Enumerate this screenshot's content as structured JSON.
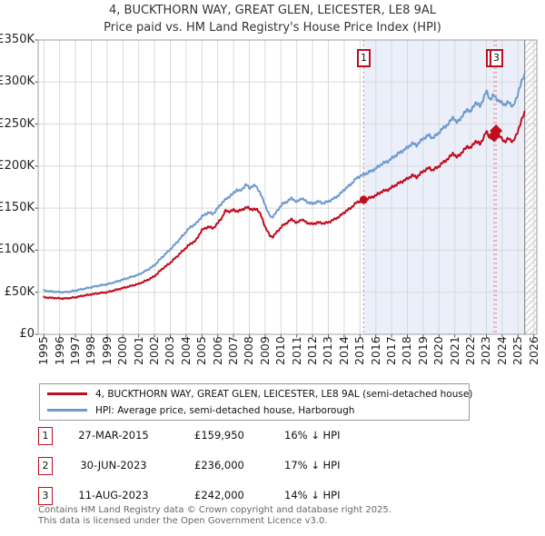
{
  "title": {
    "line1": "4, BUCKTHORN WAY, GREAT GLEN, LEICESTER, LE8 9AL",
    "line2": "Price paid vs. HM Land Registry's House Price Index (HPI)"
  },
  "chart_data": {
    "type": "line",
    "xlim": [
      1994.64,
      2026.19
    ],
    "x_axis": {
      "years": [
        1995,
        1996,
        1997,
        1998,
        1999,
        2000,
        2001,
        2002,
        2003,
        2004,
        2005,
        2006,
        2007,
        2008,
        2009,
        2010,
        2011,
        2012,
        2013,
        2014,
        2015,
        2016,
        2017,
        2018,
        2019,
        2020,
        2021,
        2022,
        2023,
        2024,
        2025,
        2026
      ]
    },
    "y_axis": {
      "ylim": [
        0,
        350
      ],
      "tick_values": [
        0,
        50,
        100,
        150,
        200,
        250,
        300,
        350
      ],
      "tick_labels": [
        "£0",
        "£50K",
        "£100K",
        "£150K",
        "£200K",
        "£250K",
        "£300K",
        "£350K"
      ],
      "unit": "GBP thousands"
    },
    "grid": true,
    "shaded_region": {
      "from": 2015.23,
      "to": 2025.42
    },
    "hatched_region": {
      "from": 2025.42,
      "to": 2026.19
    },
    "series": [
      {
        "name": "hpi-harborough-semi-detached",
        "color": "#6f9acd",
        "anchors": [
          [
            1995.0,
            52
          ],
          [
            1995.4,
            51
          ],
          [
            1995.8,
            50.5
          ],
          [
            1996.2,
            50
          ],
          [
            1996.6,
            50.5
          ],
          [
            1997.0,
            52
          ],
          [
            1997.5,
            54
          ],
          [
            1998.0,
            56
          ],
          [
            1998.5,
            58
          ],
          [
            1999.0,
            59.5
          ],
          [
            1999.5,
            62
          ],
          [
            2000.0,
            65
          ],
          [
            2000.5,
            68
          ],
          [
            2001.0,
            71
          ],
          [
            2001.5,
            76
          ],
          [
            2002.0,
            82
          ],
          [
            2002.5,
            92
          ],
          [
            2003.0,
            101
          ],
          [
            2003.5,
            111
          ],
          [
            2004.0,
            122
          ],
          [
            2004.3,
            128
          ],
          [
            2004.6,
            131
          ],
          [
            2005.0,
            140
          ],
          [
            2005.4,
            145
          ],
          [
            2005.7,
            143
          ],
          [
            2006.0,
            150
          ],
          [
            2006.3,
            157
          ],
          [
            2006.6,
            162
          ],
          [
            2006.9,
            166
          ],
          [
            2007.2,
            172
          ],
          [
            2007.4,
            170
          ],
          [
            2007.6,
            174
          ],
          [
            2007.8,
            178
          ],
          [
            2008.0,
            174
          ],
          [
            2008.2,
            176
          ],
          [
            2008.4,
            177
          ],
          [
            2008.6,
            171
          ],
          [
            2008.9,
            159
          ],
          [
            2009.2,
            144
          ],
          [
            2009.4,
            139
          ],
          [
            2009.6,
            142
          ],
          [
            2009.8,
            148
          ],
          [
            2010.1,
            155
          ],
          [
            2010.4,
            158
          ],
          [
            2010.7,
            162
          ],
          [
            2011.0,
            157
          ],
          [
            2011.3,
            162
          ],
          [
            2011.6,
            158
          ],
          [
            2012.0,
            155
          ],
          [
            2012.3,
            158
          ],
          [
            2012.7,
            156
          ],
          [
            2013.0,
            158
          ],
          [
            2013.4,
            162
          ],
          [
            2013.7,
            166
          ],
          [
            2014.0,
            172
          ],
          [
            2014.4,
            178
          ],
          [
            2014.8,
            186
          ],
          [
            2015.23,
            190
          ],
          [
            2015.6,
            193
          ],
          [
            2016.0,
            197
          ],
          [
            2016.4,
            203
          ],
          [
            2016.8,
            206
          ],
          [
            2017.2,
            212
          ],
          [
            2017.6,
            217
          ],
          [
            2018.0,
            222
          ],
          [
            2018.3,
            227
          ],
          [
            2018.6,
            225
          ],
          [
            2019.0,
            233
          ],
          [
            2019.4,
            237
          ],
          [
            2019.6,
            233
          ],
          [
            2020.0,
            240
          ],
          [
            2020.3,
            246
          ],
          [
            2020.6,
            250
          ],
          [
            2020.9,
            259
          ],
          [
            2021.1,
            251
          ],
          [
            2021.5,
            260
          ],
          [
            2021.8,
            268
          ],
          [
            2022.0,
            264
          ],
          [
            2022.3,
            276
          ],
          [
            2022.6,
            271
          ],
          [
            2023.0,
            289
          ],
          [
            2023.25,
            279
          ],
          [
            2023.4,
            283
          ],
          [
            2023.49,
            284
          ],
          [
            2023.61,
            281
          ],
          [
            2023.8,
            277
          ],
          [
            2024.0,
            275
          ],
          [
            2024.2,
            273
          ],
          [
            2024.4,
            276
          ],
          [
            2024.7,
            271
          ],
          [
            2024.9,
            280
          ],
          [
            2025.1,
            294
          ],
          [
            2025.42,
            309
          ]
        ]
      },
      {
        "name": "price-paid-4-buckthorn-way",
        "color": "#c00d1e",
        "anchors": [
          [
            1995.0,
            44
          ],
          [
            1995.4,
            43.5
          ],
          [
            1995.8,
            43
          ],
          [
            1996.2,
            42.5
          ],
          [
            1996.6,
            43
          ],
          [
            1997.0,
            44
          ],
          [
            1997.5,
            46
          ],
          [
            1998.0,
            47.5
          ],
          [
            1998.5,
            49
          ],
          [
            1999.0,
            50
          ],
          [
            1999.5,
            52.5
          ],
          [
            2000.0,
            55
          ],
          [
            2000.5,
            57.5
          ],
          [
            2001.0,
            60
          ],
          [
            2001.5,
            64
          ],
          [
            2002.0,
            69
          ],
          [
            2002.5,
            78
          ],
          [
            2003.0,
            85
          ],
          [
            2003.5,
            94
          ],
          [
            2004.0,
            103
          ],
          [
            2004.3,
            108
          ],
          [
            2004.6,
            111
          ],
          [
            2005.0,
            124
          ],
          [
            2005.4,
            128
          ],
          [
            2005.7,
            126
          ],
          [
            2006.0,
            132
          ],
          [
            2006.3,
            140
          ],
          [
            2006.5,
            147
          ],
          [
            2006.8,
            146
          ],
          [
            2007.0,
            148
          ],
          [
            2007.3,
            146
          ],
          [
            2007.6,
            149
          ],
          [
            2007.9,
            151
          ],
          [
            2008.2,
            148
          ],
          [
            2008.5,
            149
          ],
          [
            2008.7,
            143
          ],
          [
            2009.0,
            128
          ],
          [
            2009.3,
            117
          ],
          [
            2009.5,
            116
          ],
          [
            2009.8,
            123
          ],
          [
            2010.1,
            129
          ],
          [
            2010.4,
            133
          ],
          [
            2010.7,
            137
          ],
          [
            2011.0,
            132
          ],
          [
            2011.3,
            137
          ],
          [
            2011.6,
            133
          ],
          [
            2012.0,
            131
          ],
          [
            2012.3,
            133
          ],
          [
            2012.7,
            132
          ],
          [
            2013.0,
            133
          ],
          [
            2013.4,
            137
          ],
          [
            2013.7,
            140
          ],
          [
            2014.0,
            145
          ],
          [
            2014.4,
            150
          ],
          [
            2014.8,
            157
          ],
          [
            2015.23,
            160
          ],
          [
            2015.6,
            162
          ],
          [
            2016.0,
            165
          ],
          [
            2016.4,
            170
          ],
          [
            2016.8,
            172
          ],
          [
            2017.2,
            177
          ],
          [
            2017.6,
            181
          ],
          [
            2018.0,
            185
          ],
          [
            2018.3,
            189
          ],
          [
            2018.6,
            187
          ],
          [
            2019.0,
            194
          ],
          [
            2019.4,
            198
          ],
          [
            2019.6,
            195
          ],
          [
            2020.0,
            200
          ],
          [
            2020.3,
            205
          ],
          [
            2020.6,
            209
          ],
          [
            2020.9,
            216
          ],
          [
            2021.1,
            210
          ],
          [
            2021.5,
            217
          ],
          [
            2021.8,
            224
          ],
          [
            2022.0,
            221
          ],
          [
            2022.3,
            230
          ],
          [
            2022.6,
            226
          ],
          [
            2023.0,
            241
          ],
          [
            2023.25,
            233
          ],
          [
            2023.49,
            236
          ],
          [
            2023.61,
            242
          ],
          [
            2023.8,
            236
          ],
          [
            2024.0,
            232
          ],
          [
            2024.2,
            229
          ],
          [
            2024.4,
            233
          ],
          [
            2024.7,
            229
          ],
          [
            2024.9,
            237
          ],
          [
            2025.1,
            248
          ],
          [
            2025.42,
            264
          ]
        ]
      }
    ],
    "transactions": [
      {
        "n": "1",
        "year": 2015.23,
        "price_k": 159.95,
        "marker": "circle"
      },
      {
        "n": "2",
        "year": 2023.49,
        "price_k": 236,
        "marker": "diamond"
      },
      {
        "n": "3",
        "year": 2023.61,
        "price_k": 242,
        "marker": "diamond"
      }
    ],
    "colors": {
      "grid": "#d9d9d9",
      "spine": "#a0a0a0",
      "shade": "#eaeffa",
      "hatch_line": "#c6c8ce",
      "hatch_bg": "#fbfbfd",
      "dotted": "#ea7e7e",
      "end_line": "#909090"
    }
  },
  "legend": {
    "items": [
      {
        "label": "4, BUCKTHORN WAY, GREAT GLEN, LEICESTER, LE8 9AL (semi-detached house)",
        "color": "#c00d1e"
      },
      {
        "label": "HPI: Average price, semi-detached house, Harborough",
        "color": "#6f9acd"
      }
    ]
  },
  "table": {
    "rows": [
      {
        "num": "1",
        "date": "27-MAR-2015",
        "price": "£159,950",
        "vs_hpi": "16% ↓ HPI"
      },
      {
        "num": "2",
        "date": "30-JUN-2023",
        "price": "£236,000",
        "vs_hpi": "17% ↓ HPI"
      },
      {
        "num": "3",
        "date": "11-AUG-2023",
        "price": "£242,000",
        "vs_hpi": "14% ↓ HPI"
      }
    ]
  },
  "footer": {
    "line1": "Contains HM Land Registry data © Crown copyright and database right 2025.",
    "line2": "This data is licensed under the Open Government Licence v3.0."
  }
}
